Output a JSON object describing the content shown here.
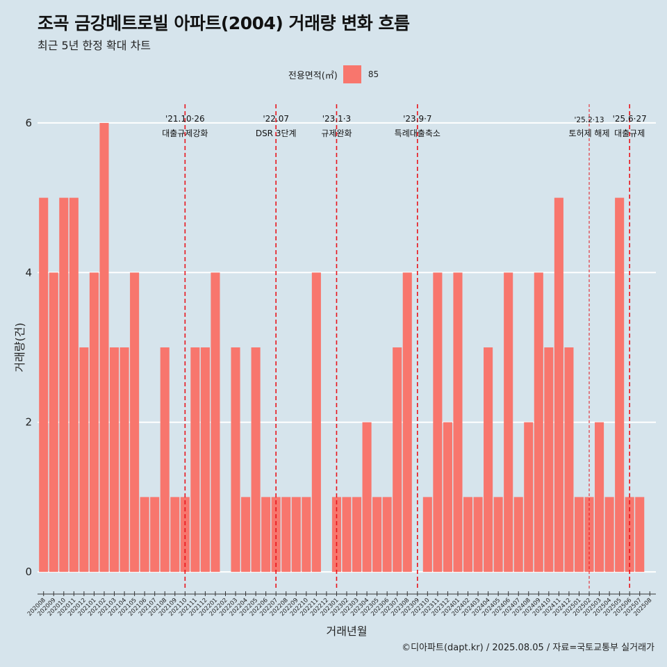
{
  "header": {
    "title": "조곡 금강메트로빌 아파트(2004) 거래량 변화 흐름",
    "subtitle": "최근 5년 한정 확대 차트"
  },
  "legend": {
    "title": "전용면적(㎡)",
    "item": "85",
    "color": "#f8766d"
  },
  "caption": "©디아파트(dapt.kr) / 2025.08.05 / 자료=국토교통부 실거래가",
  "chart_data": {
    "type": "bar",
    "xlabel": "거래년월",
    "ylabel": "거래량(건)",
    "ylim": [
      -0.25,
      6.25
    ],
    "yticks": [
      0,
      2,
      4,
      6
    ],
    "grid": "horizontal major lines",
    "legend_position": "top-center",
    "bar_color": "#f8766d",
    "categories": [
      "202008",
      "202009",
      "202010",
      "202011",
      "202012",
      "202101",
      "202102",
      "202103",
      "202104",
      "202105",
      "202106",
      "202107",
      "202108",
      "202109",
      "202110",
      "202111",
      "202112",
      "202201",
      "202202",
      "202203",
      "202204",
      "202205",
      "202206",
      "202207",
      "202208",
      "202209",
      "202210",
      "202211",
      "202212",
      "202301",
      "202302",
      "202303",
      "202304",
      "202305",
      "202306",
      "202307",
      "202308",
      "202309",
      "202310",
      "202311",
      "202312",
      "202401",
      "202402",
      "202403",
      "202404",
      "202405",
      "202406",
      "202407",
      "202408",
      "202409",
      "202410",
      "202411",
      "202412",
      "202501",
      "202502",
      "202503",
      "202504",
      "202505",
      "202506",
      "202507",
      "202508"
    ],
    "series": [
      {
        "name": "85",
        "values": [
          5,
          4,
          5,
          5,
          3,
          4,
          6,
          3,
          3,
          4,
          1,
          1,
          3,
          1,
          1,
          3,
          3,
          4,
          0,
          3,
          1,
          3,
          1,
          1,
          1,
          1,
          1,
          4,
          0,
          1,
          1,
          1,
          2,
          1,
          1,
          3,
          4,
          0,
          1,
          4,
          2,
          4,
          1,
          1,
          3,
          1,
          4,
          1,
          2,
          4,
          3,
          5,
          3,
          1,
          1,
          2,
          1,
          5,
          1,
          1,
          null
        ]
      }
    ],
    "events": [
      {
        "date": "'21.10·26",
        "label": "대출규제강화",
        "x_category": "202110"
      },
      {
        "date": "'22.07",
        "label": "DSR 3단계",
        "x_category": "202207"
      },
      {
        "date": "'23.1·3",
        "label": "규제완화",
        "x_category": "202301"
      },
      {
        "date": "'23.9·7",
        "label": "특례대출축소",
        "x_category": "202309"
      },
      {
        "date": "'25.2·13",
        "label": "토허제 해제",
        "x_category": "202502"
      },
      {
        "date": "'25.6·27",
        "label": "대출규제",
        "x_category": "202506"
      }
    ]
  }
}
